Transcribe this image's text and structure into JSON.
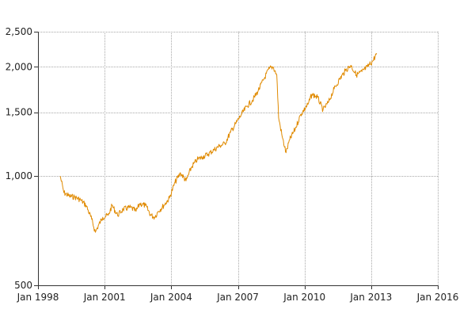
{
  "chart_data": {
    "type": "line",
    "title": "",
    "xlabel": "",
    "ylabel": "",
    "y_scale": "log",
    "xlim": [
      "1998-01",
      "2016-01"
    ],
    "ylim": [
      500,
      2500
    ],
    "grid": true,
    "legend": "none",
    "x_ticks": [
      {
        "value": "1998-01",
        "label": "Jan 1998"
      },
      {
        "value": "2001-01",
        "label": "Jan 2001"
      },
      {
        "value": "2004-01",
        "label": "Jan 2004"
      },
      {
        "value": "2007-01",
        "label": "Jan 2007"
      },
      {
        "value": "2010-01",
        "label": "Jan 2010"
      },
      {
        "value": "2013-01",
        "label": "Jan 2013"
      },
      {
        "value": "2016-01",
        "label": "Jan 2016"
      }
    ],
    "y_ticks": [
      {
        "value": 500,
        "label": "500"
      },
      {
        "value": 1000,
        "label": "1,000"
      },
      {
        "value": 1500,
        "label": "1,500"
      },
      {
        "value": 2000,
        "label": "2,000"
      },
      {
        "value": 2500,
        "label": "2,500"
      }
    ],
    "series": [
      {
        "color": "#e08a00",
        "points": [
          [
            "1999-01",
            1000
          ],
          [
            "1999-03",
            900
          ],
          [
            "1999-06",
            880
          ],
          [
            "1999-09",
            875
          ],
          [
            "1999-12",
            860
          ],
          [
            "2000-03",
            830
          ],
          [
            "2000-06",
            760
          ],
          [
            "2000-08",
            700
          ],
          [
            "2000-09",
            720
          ],
          [
            "2000-12",
            770
          ],
          [
            "2001-03",
            780
          ],
          [
            "2001-05",
            830
          ],
          [
            "2001-08",
            780
          ],
          [
            "2001-11",
            810
          ],
          [
            "2002-03",
            820
          ],
          [
            "2002-06",
            800
          ],
          [
            "2002-08",
            840
          ],
          [
            "2002-11",
            830
          ],
          [
            "2003-02",
            780
          ],
          [
            "2003-04",
            770
          ],
          [
            "2003-06",
            800
          ],
          [
            "2003-09",
            830
          ],
          [
            "2003-12",
            870
          ],
          [
            "2004-03",
            960
          ],
          [
            "2004-06",
            1020
          ],
          [
            "2004-09",
            970
          ],
          [
            "2004-12",
            1060
          ],
          [
            "2005-03",
            1110
          ],
          [
            "2005-06",
            1130
          ],
          [
            "2005-09",
            1150
          ],
          [
            "2005-12",
            1180
          ],
          [
            "2006-03",
            1210
          ],
          [
            "2006-06",
            1230
          ],
          [
            "2006-09",
            1320
          ],
          [
            "2006-12",
            1400
          ],
          [
            "2007-03",
            1480
          ],
          [
            "2007-06",
            1560
          ],
          [
            "2007-09",
            1620
          ],
          [
            "2007-12",
            1720
          ],
          [
            "2008-03",
            1850
          ],
          [
            "2008-06",
            1980
          ],
          [
            "2008-08",
            2000
          ],
          [
            "2008-10",
            1900
          ],
          [
            "2008-11",
            1450
          ],
          [
            "2009-01",
            1280
          ],
          [
            "2009-03",
            1160
          ],
          [
            "2009-05",
            1260
          ],
          [
            "2009-08",
            1350
          ],
          [
            "2009-11",
            1480
          ],
          [
            "2010-03",
            1580
          ],
          [
            "2010-05",
            1680
          ],
          [
            "2010-08",
            1650
          ],
          [
            "2010-11",
            1520
          ],
          [
            "2011-02",
            1600
          ],
          [
            "2011-05",
            1740
          ],
          [
            "2011-08",
            1850
          ],
          [
            "2011-11",
            1950
          ],
          [
            "2012-02",
            2020
          ],
          [
            "2012-05",
            1900
          ],
          [
            "2012-08",
            1940
          ],
          [
            "2012-11",
            2000
          ],
          [
            "2013-02",
            2080
          ],
          [
            "2013-04",
            2180
          ]
        ]
      }
    ]
  }
}
